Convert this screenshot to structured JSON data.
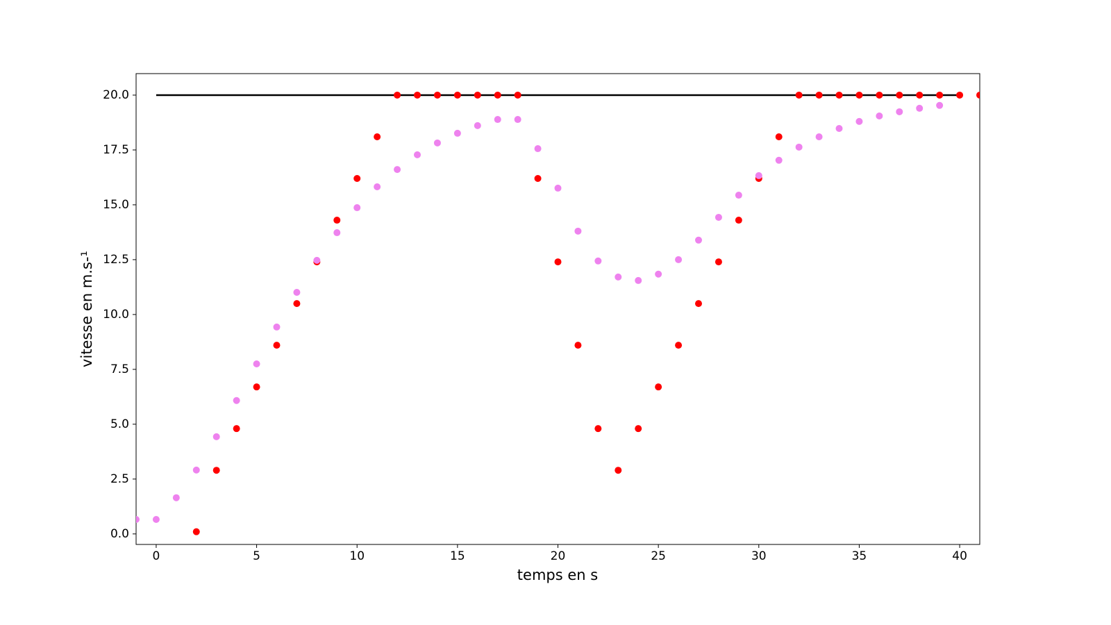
{
  "chart_data": {
    "type": "scatter",
    "xlabel": "temps en s",
    "ylabel": "vitesse en m.s-¹",
    "xlim": [
      -1,
      41
    ],
    "ylim": [
      -0.48,
      20.98
    ],
    "xticks": [
      0,
      5,
      10,
      15,
      20,
      25,
      30,
      35,
      40
    ],
    "yticks": [
      {
        "value": 0,
        "label": "0.0"
      },
      2.5,
      {
        "value": 5,
        "label": "5.0"
      },
      7.5,
      {
        "value": 10,
        "label": "10.0"
      },
      12.5,
      {
        "value": 15,
        "label": "15.0"
      },
      17.5,
      {
        "value": 20,
        "label": "20.0"
      }
    ],
    "grid": false,
    "series": [
      {
        "mode": "line",
        "color": "#000000",
        "x": [
          0,
          40
        ],
        "values": [
          20,
          20
        ]
      },
      {
        "mode": "markers",
        "color": "#ff0000",
        "x": [
          2,
          3,
          4,
          5,
          6,
          7,
          8,
          9,
          10,
          11,
          12,
          13,
          14,
          15,
          16,
          17,
          18,
          19,
          20,
          21,
          22,
          23,
          24,
          25,
          26,
          27,
          28,
          29,
          30,
          31,
          32,
          33,
          34,
          35,
          36,
          37,
          38,
          39,
          40,
          41
        ],
        "values": [
          0.1,
          2.9,
          4.8,
          6.7,
          8.6,
          10.5,
          12.4,
          14.3,
          16.2,
          18.1,
          20,
          20,
          20,
          20,
          20,
          20,
          20,
          16.2,
          12.4,
          8.6,
          4.8,
          2.9,
          4.8,
          6.7,
          8.6,
          10.5,
          12.4,
          14.3,
          16.2,
          18.1,
          20,
          20,
          20,
          20,
          20,
          20,
          20,
          20,
          20,
          20
        ]
      },
      {
        "mode": "markers",
        "color": "#ee82ee",
        "x": [
          -1,
          0,
          1,
          2,
          3,
          4,
          5,
          6,
          7,
          8,
          9,
          10,
          11,
          12,
          13,
          14,
          15,
          16,
          17,
          18,
          19,
          20,
          21,
          22,
          23,
          24,
          25,
          26,
          27,
          28,
          29,
          30,
          31,
          32,
          33,
          34,
          35,
          36,
          37,
          38,
          39
        ],
        "values": [
          0.66,
          0.66,
          1.65,
          2.91,
          4.43,
          6.08,
          7.75,
          9.43,
          11.01,
          12.47,
          13.73,
          14.87,
          15.82,
          16.61,
          17.28,
          17.82,
          18.26,
          18.61,
          18.89,
          18.89,
          17.56,
          15.76,
          13.8,
          12.44,
          11.71,
          11.55,
          11.84,
          12.5,
          13.39,
          14.43,
          15.44,
          16.33,
          17.03,
          17.63,
          18.1,
          18.48,
          18.8,
          19.05,
          19.24,
          19.4,
          19.53
        ]
      }
    ]
  }
}
